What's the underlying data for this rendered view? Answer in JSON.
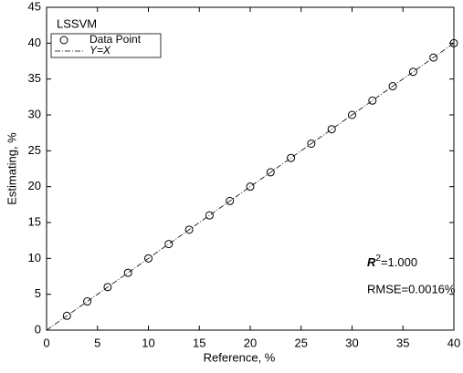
{
  "chart_data": {
    "type": "scatter",
    "annotations": {
      "model": "LSSVM",
      "r2_symbol": "R",
      "r2_exponent": "2",
      "r2_value": "=1.000",
      "rmse": "RMSE=0.0016%"
    },
    "xlabel": "Reference, %",
    "ylabel": "Estimating, %",
    "xlim": [
      0,
      40
    ],
    "xticks": [
      0,
      5,
      10,
      15,
      20,
      25,
      30,
      35,
      40
    ],
    "ylim": [
      0,
      45
    ],
    "yticks": [
      0,
      5,
      10,
      15,
      20,
      25,
      30,
      35,
      40,
      45
    ],
    "grid": false,
    "legend": "upper left",
    "series": [
      {
        "name": "Data Point",
        "color": "#000000",
        "marker": "circle",
        "x": [
          2,
          4,
          6,
          8,
          10,
          12,
          14,
          16,
          18,
          20,
          22,
          24,
          26,
          28,
          30,
          32,
          34,
          36,
          38,
          40
        ],
        "values": [
          2,
          4,
          6,
          8,
          10,
          12,
          14,
          16,
          18,
          20,
          22,
          24,
          26,
          28,
          30,
          32,
          34,
          36,
          38,
          40
        ]
      },
      {
        "name": "Y=X",
        "color": "#000000",
        "marker": "dashdot-line",
        "x": [
          0,
          40
        ],
        "values": [
          0,
          40
        ]
      }
    ]
  }
}
